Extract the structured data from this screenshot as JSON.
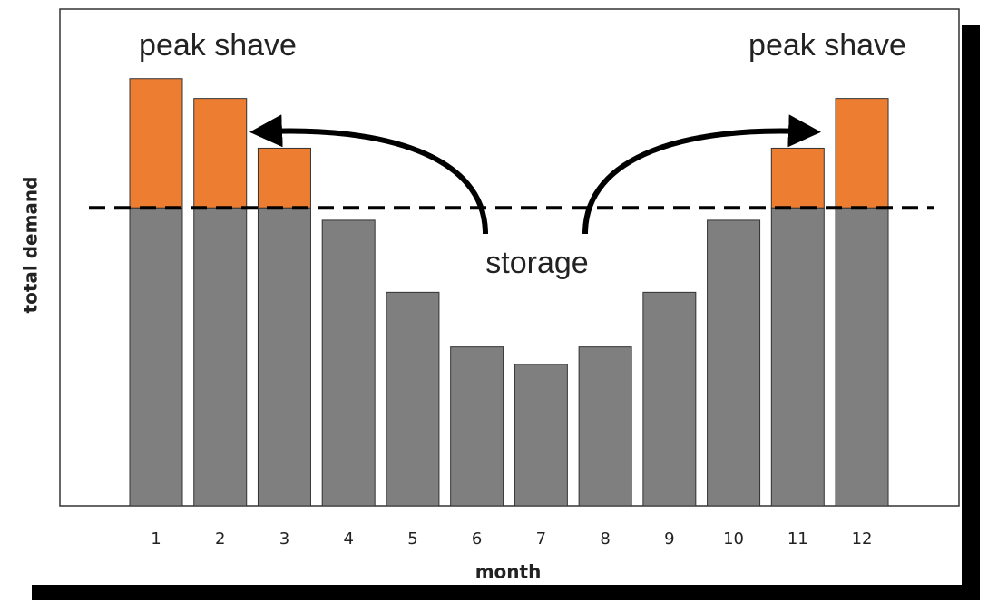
{
  "chart_data": {
    "type": "stacked_bar",
    "x_label": "month",
    "y_label": "total demand",
    "categories": [
      1,
      2,
      3,
      4,
      5,
      6,
      7,
      8,
      9,
      10,
      11,
      12
    ],
    "series": [
      {
        "color": "#7f7f7f",
        "values": [
          60,
          60,
          60,
          57.5,
          43,
          32,
          28.5,
          32,
          43,
          57.5,
          60,
          60
        ]
      },
      {
        "color": "#ed7d31",
        "values": [
          26,
          22,
          12,
          0,
          0,
          0,
          0,
          0,
          0,
          0,
          12,
          22
        ]
      }
    ],
    "threshold": 60,
    "ylim": [
      0,
      100
    ],
    "annotations": [
      "peak shave",
      "peak shave",
      "storage"
    ]
  }
}
